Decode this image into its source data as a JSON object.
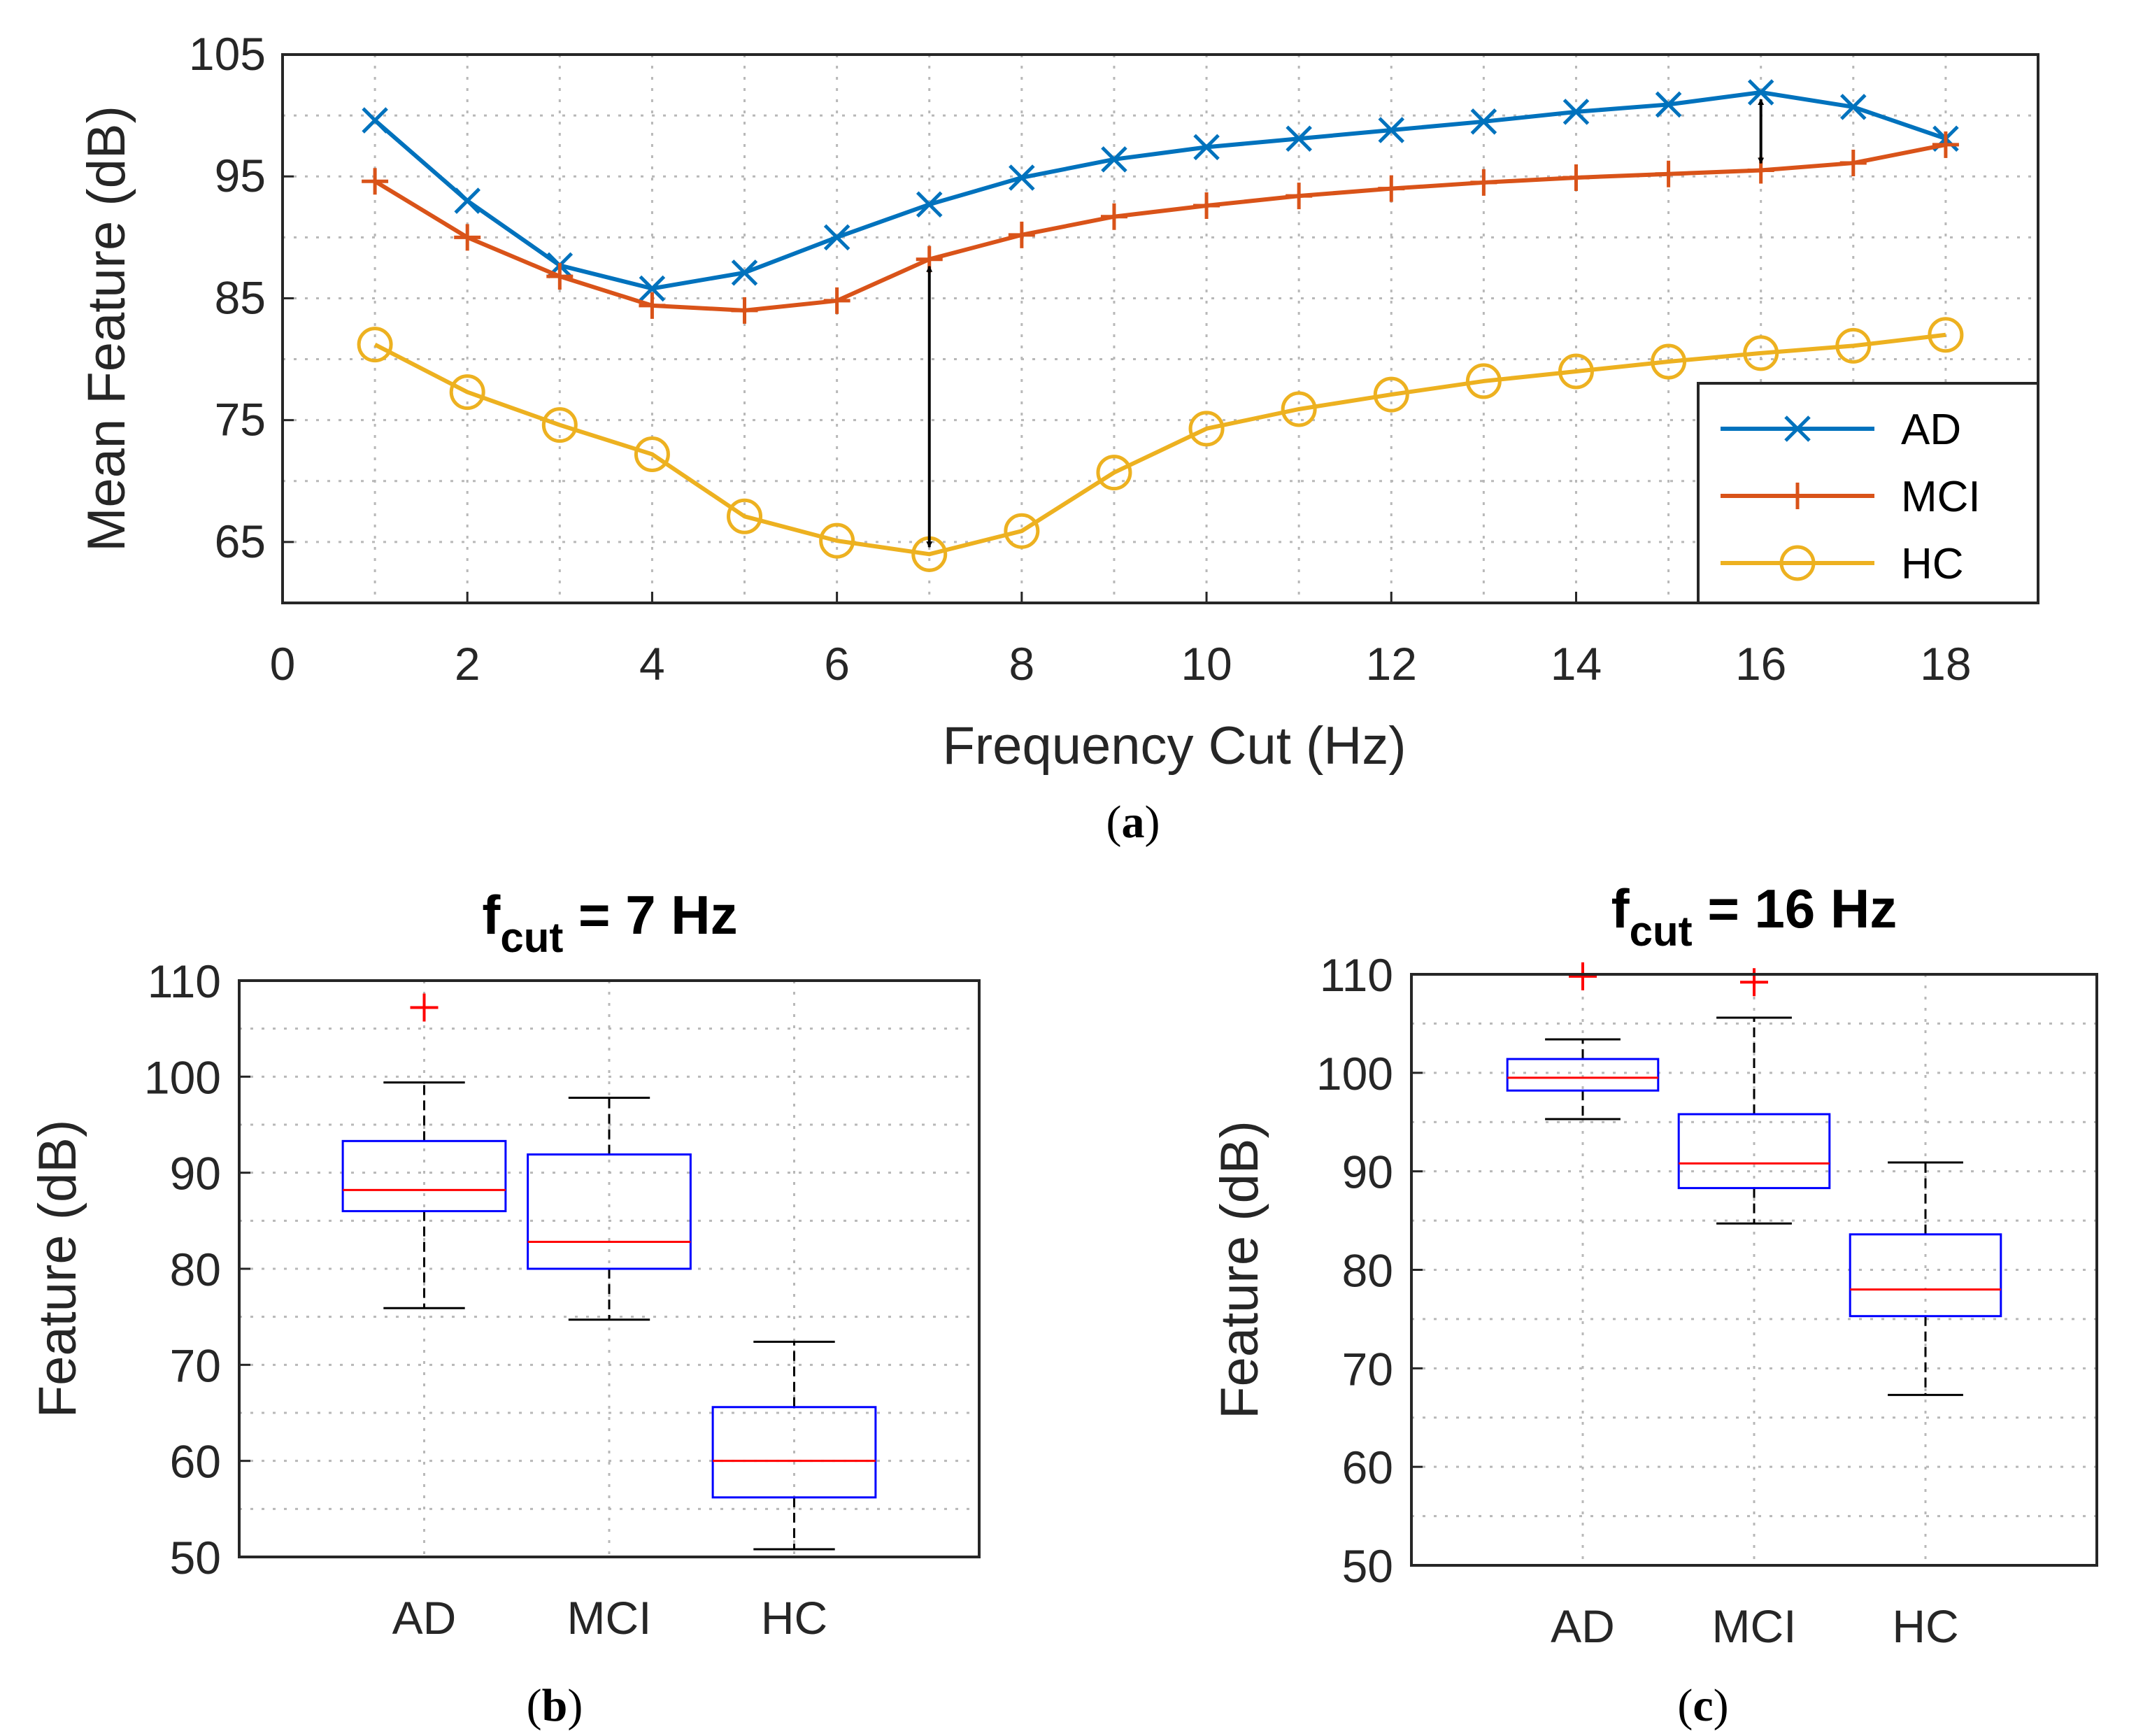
{
  "chart_data": [
    {
      "type": "line",
      "caption": "(a)",
      "caption_letter": "a",
      "xlabel": "Frequency Cut (Hz)",
      "ylabel": "Mean Feature (dB)",
      "xlim": [
        0,
        19
      ],
      "ylim": [
        60,
        105
      ],
      "xticks": [
        0,
        2,
        4,
        6,
        8,
        10,
        12,
        14,
        16,
        18
      ],
      "yticks": [
        65,
        75,
        85,
        95,
        105
      ],
      "grid": true,
      "legend_position": "bottom-right",
      "x": [
        1,
        2,
        3,
        4,
        5,
        6,
        7,
        8,
        9,
        10,
        11,
        12,
        13,
        14,
        15,
        16,
        17,
        18
      ],
      "series": [
        {
          "name": "AD",
          "color": "#0072BD",
          "marker": "x",
          "values": [
            99.6,
            93.0,
            87.7,
            85.8,
            87.1,
            90.0,
            92.7,
            94.9,
            96.4,
            97.4,
            98.1,
            98.8,
            99.5,
            100.3,
            100.9,
            101.9,
            100.7,
            98.1
          ]
        },
        {
          "name": "MCI",
          "color": "#D95319",
          "marker": "+",
          "values": [
            94.6,
            90.0,
            86.8,
            84.4,
            84.0,
            84.8,
            88.2,
            90.2,
            91.7,
            92.6,
            93.4,
            94.0,
            94.5,
            94.9,
            95.2,
            95.5,
            96.1,
            97.6
          ]
        },
        {
          "name": "HC",
          "color": "#EDB120",
          "marker": "o",
          "values": [
            81.2,
            77.3,
            74.6,
            72.2,
            67.1,
            65.1,
            64.0,
            65.9,
            70.7,
            74.3,
            75.9,
            77.1,
            78.2,
            79.0,
            79.8,
            80.5,
            81.1,
            82.0
          ]
        }
      ],
      "annotations": [
        {
          "type": "double-arrow",
          "x": 7,
          "y_from": 88.2,
          "y_to": 64.0
        },
        {
          "type": "double-arrow",
          "x": 16,
          "y_from": 101.9,
          "y_to": 95.5
        }
      ]
    },
    {
      "type": "box",
      "caption": "(b)",
      "caption_letter": "b",
      "title_main": "f",
      "title_sub": "cut",
      "title_rest": " = 7 Hz",
      "ylabel": "Feature (dB)",
      "ylim": [
        50,
        110
      ],
      "yticks": [
        50,
        60,
        70,
        80,
        90,
        100,
        110
      ],
      "grid": true,
      "categories": [
        "AD",
        "MCI",
        "HC"
      ],
      "boxes": [
        {
          "whisker_low": 75.9,
          "q1": 86.0,
          "median": 88.2,
          "q3": 93.3,
          "whisker_high": 99.4,
          "outliers": [
            107.2
          ]
        },
        {
          "whisker_low": 74.7,
          "q1": 80.0,
          "median": 82.8,
          "q3": 91.9,
          "whisker_high": 97.8,
          "outliers": []
        },
        {
          "whisker_low": 50.8,
          "q1": 56.2,
          "median": 60.0,
          "q3": 65.6,
          "whisker_high": 72.4,
          "outliers": []
        }
      ]
    },
    {
      "type": "box",
      "caption": "(c)",
      "caption_letter": "c",
      "title_main": "f",
      "title_sub": "cut",
      "title_rest": " = 16 Hz",
      "ylabel": "Feature (dB)",
      "ylim": [
        50,
        110
      ],
      "yticks": [
        50,
        60,
        70,
        80,
        90,
        100,
        110
      ],
      "grid": true,
      "categories": [
        "AD",
        "MCI",
        "HC"
      ],
      "boxes": [
        {
          "whisker_low": 95.3,
          "q1": 98.2,
          "median": 99.5,
          "q3": 101.4,
          "whisker_high": 103.4,
          "outliers": [
            109.8
          ]
        },
        {
          "whisker_low": 84.7,
          "q1": 88.3,
          "median": 90.8,
          "q3": 95.8,
          "whisker_high": 105.6,
          "outliers": [
            109.2
          ]
        },
        {
          "whisker_low": 67.3,
          "q1": 75.3,
          "median": 78.0,
          "q3": 83.6,
          "whisker_high": 90.9,
          "outliers": []
        }
      ]
    }
  ]
}
